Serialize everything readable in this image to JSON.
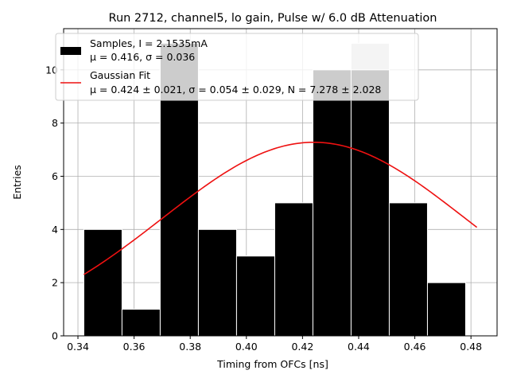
{
  "chart_data": {
    "type": "bar",
    "title": "Run 2712, channel5, lo gain, Pulse w/ 6.0 dB Attenuation",
    "xlabel": "Timing from OFCs [ns]",
    "ylabel": "Entries",
    "xlim": [
      0.3349,
      0.4893
    ],
    "ylim": [
      0,
      11.55
    ],
    "grid": true,
    "xticks": [
      0.34,
      0.36,
      0.38,
      0.4,
      0.42,
      0.44,
      0.46,
      0.48
    ],
    "xtick_labels": [
      "0.34",
      "0.36",
      "0.38",
      "0.40",
      "0.42",
      "0.44",
      "0.46",
      "0.48"
    ],
    "yticks": [
      0,
      2,
      4,
      6,
      8,
      10
    ],
    "ytick_labels": [
      "0",
      "2",
      "4",
      "6",
      "8",
      "10"
    ],
    "histogram": {
      "bin_edges": [
        0.3421,
        0.3557,
        0.3693,
        0.3829,
        0.3965,
        0.4101,
        0.4237,
        0.4373,
        0.4509,
        0.4645,
        0.4781
      ],
      "counts": [
        4,
        1,
        11,
        4,
        3,
        5,
        10,
        11,
        5,
        2
      ],
      "light_counts": [
        4,
        1,
        11,
        4,
        3,
        5,
        10,
        11,
        5,
        2
      ],
      "dark_counts": [
        4,
        1,
        11,
        4,
        3,
        5,
        10,
        10,
        5,
        2
      ]
    },
    "fit": {
      "mu": 0.424,
      "sigma": 0.054,
      "N": 7.278,
      "x_range": [
        0.3421,
        0.4821
      ]
    },
    "legend": {
      "position": "upper-left",
      "entries": [
        {
          "label_line1": "Samples, I = 2.1535mA",
          "label_line2": "μ = 0.416, σ = 0.036",
          "swatch": "bar"
        },
        {
          "label_line1": "Gaussian Fit",
          "label_line2": "μ = 0.424 ± 0.021, σ = 0.054 ± 0.029, N = 7.278 ± 2.028",
          "swatch": "line"
        }
      ]
    },
    "colors": {
      "bar_dark": "#000000",
      "bar_light": "#c8c8c8",
      "bar_edge": "#ffffff",
      "fit_line": "#ee1111",
      "grid": "#b0b0b0"
    }
  }
}
